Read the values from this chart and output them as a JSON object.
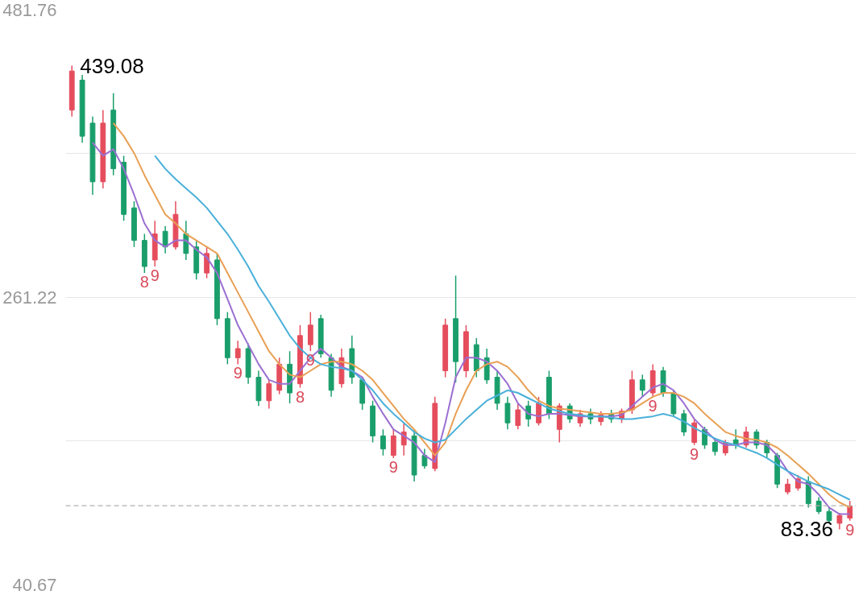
{
  "chart_data": {
    "type": "candlestick",
    "categories": [
      null,
      null,
      null,
      null,
      null,
      null,
      null,
      null,
      null,
      null,
      null,
      null,
      null,
      null,
      null,
      null,
      null,
      null,
      null,
      null,
      null,
      null,
      null,
      null,
      null,
      null,
      null,
      null,
      null,
      null,
      null,
      null,
      null,
      null,
      null,
      null,
      null,
      null,
      null,
      null,
      null,
      null,
      null,
      null,
      null,
      null,
      null,
      null,
      null,
      null,
      null,
      null,
      null,
      null,
      null,
      null,
      null,
      null,
      null,
      null,
      null,
      null,
      null,
      null,
      null,
      null,
      null,
      null,
      null,
      null,
      null,
      null,
      null,
      null,
      null,
      null
    ],
    "value_labels": [
      "439.08",
      null,
      null,
      null,
      null,
      null,
      null,
      "8",
      "9",
      null,
      null,
      null,
      null,
      null,
      null,
      null,
      "9",
      null,
      null,
      null,
      null,
      null,
      "8",
      "9",
      null,
      null,
      null,
      null,
      null,
      null,
      null,
      "9",
      null,
      null,
      null,
      null,
      null,
      null,
      null,
      null,
      null,
      null,
      null,
      null,
      null,
      null,
      null,
      null,
      null,
      null,
      null,
      null,
      null,
      null,
      null,
      null,
      "9",
      null,
      null,
      null,
      "9",
      null,
      null,
      null,
      null,
      null,
      null,
      null,
      null,
      null,
      null,
      null,
      null,
      null,
      "83.36",
      "9"
    ],
    "ylim": [
      40.67,
      481.76
    ],
    "yticks": [
      481.76,
      {
        "value": 371.49,
        "label": null
      },
      261.22,
      {
        "value": 150.95,
        "label": null
      },
      40.67
    ],
    "tick_labels": "y",
    "grid": "y",
    "colors": [
      "#e54d5d",
      "#1a9e6b",
      "#1a9e6b",
      "#e54d5d",
      "#1a9e6b",
      "#1a9e6b",
      "#1a9e6b",
      "#1a9e6b",
      "#e54d5d",
      "#1a9e6b",
      "#e54d5d",
      "#1a9e6b",
      "#1a9e6b",
      "#e54d5d",
      "#1a9e6b",
      "#1a9e6b",
      "#e54d5d",
      "#1a9e6b",
      "#1a9e6b",
      "#e54d5d",
      "#e54d5d",
      "#1a9e6b",
      "#e54d5d",
      "#e54d5d",
      "#1a9e6b",
      "#1a9e6b",
      "#e54d5d",
      "#1a9e6b",
      "#1a9e6b",
      "#1a9e6b",
      "#1a9e6b",
      "#e54d5d",
      "#e54d5d",
      "#1a9e6b",
      "#1a9e6b",
      "#e54d5d",
      "#e54d5d",
      "#1a9e6b",
      "#e54d5d",
      "#1a9e6b",
      "#1a9e6b",
      "#1a9e6b",
      "#1a9e6b",
      "#e54d5d",
      "#1a9e6b",
      "#e54d5d",
      "#1a9e6b",
      "#e54d5d",
      "#1a9e6b",
      "#e54d5d",
      "#1a9e6b",
      "#e54d5d",
      "#1a9e6b",
      "#e54d5d",
      "#e54d5d",
      "#1a9e6b",
      "#e54d5d",
      "#1a9e6b",
      "#1a9e6b",
      "#1a9e6b",
      "#e54d5d",
      "#1a9e6b",
      "#1a9e6b",
      "#e54d5d",
      "#1a9e6b",
      "#e54d5d",
      "#1a9e6b",
      "#1a9e6b",
      "#1a9e6b",
      "#e54d5d",
      "#e54d5d",
      "#1a9e6b",
      "#1a9e6b",
      "#1a9e6b",
      "#e54d5d",
      "#e54d5d"
    ],
    "ohlc": [
      [
        405,
        439.08,
        400,
        435
      ],
      [
        428,
        432,
        380,
        385
      ],
      [
        395,
        400,
        340,
        350
      ],
      [
        350,
        405,
        345,
        395
      ],
      [
        405,
        418,
        355,
        360
      ],
      [
        365,
        370,
        320,
        325
      ],
      [
        330,
        335,
        300,
        305
      ],
      [
        305,
        310,
        280,
        285
      ],
      [
        290,
        320,
        285,
        310
      ],
      [
        312,
        316,
        295,
        300
      ],
      [
        300,
        335,
        298,
        325
      ],
      [
        310,
        320,
        290,
        295
      ],
      [
        300,
        305,
        275,
        280
      ],
      [
        280,
        300,
        276,
        295
      ],
      [
        290,
        295,
        240,
        245
      ],
      [
        245,
        250,
        210,
        215
      ],
      [
        215,
        228,
        210,
        222
      ],
      [
        222,
        226,
        195,
        200
      ],
      [
        200,
        205,
        178,
        182
      ],
      [
        182,
        198,
        176,
        195
      ],
      [
        190,
        215,
        187,
        210
      ],
      [
        210,
        220,
        180,
        188
      ],
      [
        195,
        240,
        192,
        232
      ],
      [
        225,
        250,
        220,
        240
      ],
      [
        245,
        248,
        215,
        218
      ],
      [
        215,
        218,
        185,
        190
      ],
      [
        195,
        222,
        192,
        215
      ],
      [
        222,
        232,
        195,
        200
      ],
      [
        198,
        200,
        175,
        180
      ],
      [
        178,
        182,
        150,
        155
      ],
      [
        155,
        160,
        140,
        145
      ],
      [
        140,
        160,
        138,
        155
      ],
      [
        148,
        165,
        140,
        158
      ],
      [
        155,
        160,
        120,
        125
      ],
      [
        140,
        145,
        130,
        132
      ],
      [
        130,
        185,
        128,
        180
      ],
      [
        205,
        245,
        200,
        240
      ],
      [
        245,
        278,
        196,
        212
      ],
      [
        205,
        240,
        200,
        235
      ],
      [
        225,
        230,
        200,
        205
      ],
      [
        215,
        222,
        195,
        198
      ],
      [
        200,
        205,
        175,
        180
      ],
      [
        180,
        185,
        160,
        165
      ],
      [
        163,
        180,
        160,
        175
      ],
      [
        178,
        182,
        162,
        168
      ],
      [
        165,
        185,
        163,
        180
      ],
      [
        200,
        205,
        168,
        172
      ],
      [
        160,
        180,
        150,
        178
      ],
      [
        178,
        180,
        165,
        168
      ],
      [
        165,
        175,
        162,
        172
      ],
      [
        172,
        176,
        164,
        168
      ],
      [
        166,
        174,
        163,
        171
      ],
      [
        172,
        175,
        165,
        168
      ],
      [
        168,
        176,
        165,
        174
      ],
      [
        175,
        205,
        172,
        198
      ],
      [
        198,
        202,
        185,
        190
      ],
      [
        188,
        210,
        185,
        205
      ],
      [
        205,
        208,
        185,
        188
      ],
      [
        188,
        190,
        170,
        172
      ],
      [
        172,
        175,
        155,
        158
      ],
      [
        150,
        168,
        148,
        165
      ],
      [
        160,
        162,
        145,
        148
      ],
      [
        150,
        152,
        140,
        143
      ],
      [
        142,
        152,
        140,
        150
      ],
      [
        152,
        160,
        145,
        148
      ],
      [
        148,
        162,
        146,
        158
      ],
      [
        158,
        160,
        145,
        148
      ],
      [
        150,
        152,
        138,
        142
      ],
      [
        140,
        142,
        115,
        118
      ],
      [
        112,
        122,
        110,
        118
      ],
      [
        115,
        125,
        113,
        122
      ],
      [
        120,
        124,
        100,
        103
      ],
      [
        105,
        108,
        95,
        97
      ],
      [
        97,
        100,
        88,
        90
      ],
      [
        88,
        96,
        83.36,
        94
      ],
      [
        92,
        105,
        90,
        101
      ]
    ],
    "series": [
      {
        "type": "line",
        "color": "#9b6fd1",
        "values": [
          null,
          null,
          380,
          370,
          375,
          360,
          340,
          318,
          305,
          300,
          305,
          305,
          298,
          292,
          280,
          260,
          240,
          225,
          210,
          198,
          195,
          195,
          205,
          215,
          222,
          215,
          208,
          205,
          200,
          185,
          172,
          160,
          155,
          150,
          140,
          135,
          165,
          200,
          215,
          215,
          212,
          205,
          195,
          180,
          172,
          170,
          172,
          172,
          171,
          170,
          170,
          170,
          170,
          171,
          178,
          185,
          192,
          195,
          190,
          180,
          168,
          160,
          152,
          148,
          148,
          150,
          150,
          148,
          140,
          128,
          120,
          118,
          110,
          100,
          95,
          95
        ]
      },
      {
        "type": "line",
        "color": "#e8a055",
        "values": [
          null,
          null,
          null,
          null,
          395,
          385,
          372,
          355,
          340,
          325,
          318,
          310,
          305,
          300,
          295,
          280,
          265,
          250,
          235,
          220,
          210,
          202,
          200,
          205,
          210,
          212,
          212,
          210,
          205,
          198,
          188,
          178,
          168,
          160,
          150,
          140,
          150,
          172,
          190,
          205,
          210,
          212,
          208,
          200,
          190,
          182,
          178,
          176,
          175,
          174,
          173,
          172,
          172,
          173,
          175,
          180,
          185,
          188,
          188,
          185,
          180,
          172,
          165,
          158,
          155,
          153,
          152,
          150,
          146,
          140,
          133,
          126,
          118,
          110,
          104,
          100
        ]
      },
      {
        "type": "line",
        "color": "#4ab0d9",
        "values": [
          null,
          null,
          null,
          null,
          null,
          null,
          null,
          null,
          370,
          360,
          352,
          345,
          338,
          330,
          320,
          310,
          298,
          285,
          270,
          258,
          245,
          232,
          222,
          215,
          210,
          208,
          207,
          205,
          198,
          190,
          180,
          172,
          165,
          158,
          153,
          150,
          152,
          160,
          168,
          175,
          182,
          186,
          190,
          188,
          184,
          180,
          176,
          174,
          172,
          171,
          170,
          170,
          169,
          168,
          168,
          169,
          170,
          172,
          170,
          166,
          161,
          157,
          153,
          150,
          148,
          145,
          142,
          138,
          133,
          128,
          124,
          120,
          117,
          114,
          110,
          106
        ]
      }
    ],
    "ref_lines": [
      {
        "axis": "y",
        "value": 101.4,
        "color": "#b0b0b0",
        "line_style": "dashed"
      }
    ]
  }
}
